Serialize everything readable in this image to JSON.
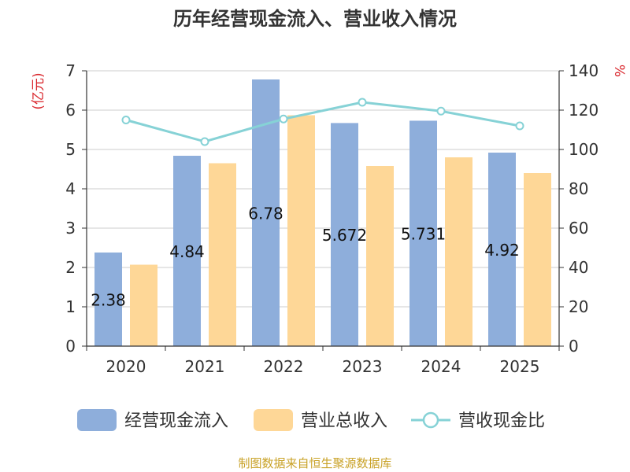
{
  "chart_data": {
    "type": "bar",
    "title": "历年经营现金流入、营业收入情况",
    "categories": [
      "2020",
      "2021",
      "2022",
      "2023",
      "2024",
      "2025"
    ],
    "y_left": {
      "unit_label": "(亿元)",
      "range": [
        0,
        7
      ],
      "ticks": [
        "0",
        "1",
        "2",
        "3",
        "4",
        "5",
        "6",
        "7"
      ]
    },
    "y_right": {
      "unit_label": "%",
      "range": [
        0,
        140
      ],
      "ticks": [
        "0",
        "20",
        "40",
        "60",
        "80",
        "100",
        "120",
        "140"
      ]
    },
    "grid": true,
    "legend_position": "bottom",
    "series": [
      {
        "name": "经营现金流入",
        "type": "bar",
        "axis": "left",
        "color": "#8eaedb",
        "values": [
          2.38,
          4.84,
          6.78,
          5.672,
          5.731,
          4.92
        ],
        "labels": [
          "2.38",
          "4.84",
          "6.78",
          "5.672",
          "5.731",
          "4.92"
        ]
      },
      {
        "name": "营业总收入",
        "type": "bar",
        "axis": "left",
        "color": "#fed797",
        "values": [
          2.07,
          4.65,
          5.87,
          4.58,
          4.8,
          4.4
        ]
      },
      {
        "name": "营收现金比",
        "type": "line",
        "axis": "right",
        "color": "#86d2d6",
        "values": [
          115,
          104,
          115.5,
          124,
          119.5,
          112
        ]
      }
    ]
  },
  "source": "制图数据来自恒生聚源数据库"
}
